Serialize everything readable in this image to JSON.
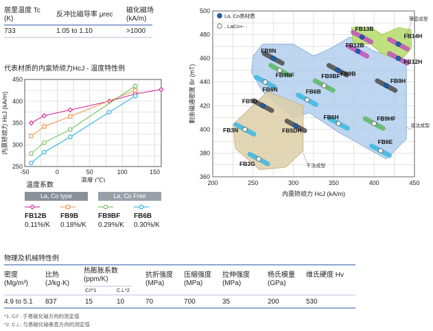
{
  "temp_table": {
    "headers": [
      "居里温度 Tc\n(K)",
      "反冲比磁导率 μrec",
      "磁化磁场\n(kA/m)"
    ],
    "h1a": "居里温度 Tc",
    "h1b": "(K)",
    "h2": "反冲比磁导率 μrec",
    "h3a": "磁化磁场",
    "h3b": "(kA/m)",
    "values": [
      "733",
      "1.05 to 1.10",
      ">1000"
    ]
  },
  "temp_chart_title": "代表材质的内禀矫顽力HcJ - 温度特性例",
  "legend_section": {
    "title": "温度系数",
    "group1": "La, Co type",
    "group2": "La, Co Free",
    "colors": {
      "group1": "#8a8f98",
      "group2": "#9aa0a8"
    },
    "items": [
      {
        "name": "FB12B",
        "coef": "0.11%/K",
        "color": "#d63aa0",
        "marker": "diamond"
      },
      {
        "name": "FB9B",
        "coef": "0.18%/K",
        "color": "#f0a060",
        "marker": "square"
      },
      {
        "name": "FB9BF",
        "coef": "0.29%/K",
        "color": "#7cc46a",
        "marker": "circle"
      },
      {
        "name": "FB6B",
        "coef": "0.30%/K",
        "color": "#3bb8e0",
        "marker": "circle"
      }
    ]
  },
  "props_section": {
    "title": "物理及机械特性例",
    "headers": [
      [
        "密度",
        "(Mg/m³)"
      ],
      [
        "比热",
        "(J/kg·K)"
      ],
      [
        "热膨胀系数",
        "(ppm/K)"
      ],
      [
        "抗折强度",
        "(MPa)"
      ],
      [
        "压缩强度",
        "(MPa)"
      ],
      [
        "拉伸强度",
        "(MPa)"
      ],
      [
        "杨氏模量",
        "(GPa)"
      ],
      [
        "维氏硬度 Hv",
        ""
      ]
    ],
    "sub_headers": [
      "C//*1",
      "C⊥*2"
    ],
    "values": [
      "4.9 to 5.1",
      "837",
      "15",
      "10",
      "70",
      "700",
      "35",
      "200",
      "530"
    ],
    "notes": [
      "*1. C// : 于易磁化轴方向的测定值",
      "*2. C⊥: 与易磁化轴垂直方向的测定值"
    ]
  },
  "chart_data": [
    {
      "type": "line",
      "title": "代表材质的内禀矫顽力HcJ - 温度特性例",
      "xlabel": "温度 (℃)",
      "ylabel": "内禀矫顽力 HcJ (kA/m)",
      "xlim": [
        -50,
        160
      ],
      "ylim": [
        250,
        450
      ],
      "xticks": [
        -50,
        0,
        50,
        100,
        150
      ],
      "yticks": [
        250,
        300,
        350,
        400,
        450
      ],
      "grid": true,
      "series": [
        {
          "name": "FB12B",
          "color": "#d63aa0",
          "marker": "diamond",
          "x": [
            -40,
            -20,
            20,
            80,
            120,
            160
          ],
          "y": [
            350,
            367,
            380,
            400,
            417,
            427
          ]
        },
        {
          "name": "FB9B",
          "color": "#f0a060",
          "marker": "square",
          "x": [
            -40,
            -20,
            20,
            120
          ],
          "y": [
            320,
            342,
            365,
            425
          ]
        },
        {
          "name": "FB9BF",
          "color": "#7cc46a",
          "marker": "circle",
          "x": [
            -40,
            -20,
            20,
            120
          ],
          "y": [
            280,
            305,
            335,
            435
          ]
        },
        {
          "name": "FB6B",
          "color": "#3bb8e0",
          "marker": "circle",
          "x": [
            -40,
            -20,
            20,
            80,
            120
          ],
          "y": [
            258,
            283,
            318,
            375,
            412
          ]
        }
      ]
    },
    {
      "type": "scatter",
      "xlabel": "内禀矫顽力 HcJ (kA/m)",
      "ylabel": "剩余磁通密度 Br (mT)",
      "xlim": [
        200,
        450
      ],
      "ylim": [
        360,
        500
      ],
      "xticks": [
        200,
        250,
        300,
        350,
        400,
        450
      ],
      "yticks": [
        360,
        380,
        400,
        420,
        440,
        460,
        480,
        500
      ],
      "grid": true,
      "legend": [
        {
          "label": "La, Co类材质",
          "marker": "filled"
        },
        {
          "label": ", LaCo+- ·",
          "marker": "open"
        }
      ],
      "region_labels": [
        "薄壁成型",
        "湿法成型",
        "干法成型"
      ],
      "region_colors": {
        "thin": "#b8de72",
        "wet": "#a8c8ea",
        "dry": "#ddcfa8"
      },
      "grades": [
        {
          "name": "FB13B",
          "hcj": 385,
          "br": 478,
          "type": "La,Co",
          "color": "#c050b8"
        },
        {
          "name": "FB14H",
          "hcj": 430,
          "br": 472,
          "type": "La,Co",
          "color": "#c050b8"
        },
        {
          "name": "FB12B",
          "hcj": 380,
          "br": 466,
          "type": "La,Co",
          "color": "#c050b8"
        },
        {
          "name": "FB12H",
          "hcj": 430,
          "br": 460,
          "type": "La,Co",
          "color": "#c050b8"
        },
        {
          "name": "FB9N",
          "hcj": 275,
          "br": 460,
          "type": "La,Co",
          "color": "#4c4c4c"
        },
        {
          "name": "FB9B",
          "hcj": 355,
          "br": 450,
          "type": "La,Co",
          "color": "#4c4c4c"
        },
        {
          "name": "FB9NF",
          "hcj": 283,
          "br": 450,
          "type": "La,Co Free",
          "color": "#5cb860"
        },
        {
          "name": "FB9BF",
          "hcj": 338,
          "br": 437,
          "type": "La,Co Free",
          "color": "#5cb860"
        },
        {
          "name": "FB9H",
          "hcj": 415,
          "br": 437,
          "type": "La,Co",
          "color": "#4c4c4c"
        },
        {
          "name": "FB6N",
          "hcj": 265,
          "br": 440,
          "type": "La,Co Free",
          "color": "#3bb8e0"
        },
        {
          "name": "FB6B",
          "hcj": 317,
          "br": 425,
          "type": "La,Co Free",
          "color": "#3bb8e0"
        },
        {
          "name": "FB5D",
          "hcj": 262,
          "br": 420,
          "type": "La,Co",
          "color": "#4c4c4c"
        },
        {
          "name": "FB6H",
          "hcj": 356,
          "br": 405,
          "type": "La,Co Free",
          "color": "#3bb8e0"
        },
        {
          "name": "FB9HF",
          "hcj": 400,
          "br": 405,
          "type": "La,Co Free",
          "color": "#5cb860"
        },
        {
          "name": "FB5DH",
          "hcj": 303,
          "br": 403,
          "type": "La,Co",
          "color": "#4c4c4c"
        },
        {
          "name": "FB3N",
          "hcj": 240,
          "br": 400,
          "type": "La,Co Free",
          "color": "#3bb8e0"
        },
        {
          "name": "FB6E",
          "hcj": 408,
          "br": 382,
          "type": "La,Co Free",
          "color": "#3bb8e0"
        },
        {
          "name": "FB3G",
          "hcj": 257,
          "br": 375,
          "type": "La,Co Free",
          "color": "#3bb8e0"
        }
      ]
    }
  ]
}
